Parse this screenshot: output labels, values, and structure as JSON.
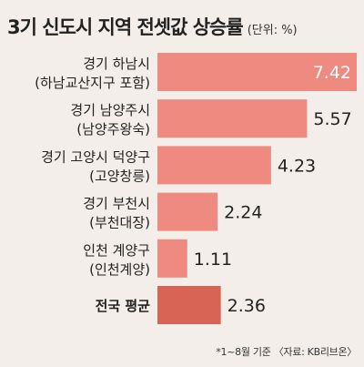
{
  "chart_data": {
    "type": "bar",
    "orientation": "horizontal",
    "title": "3기 신도시 지역 전셋값 상승률",
    "unit": "(단위: %)",
    "categories": [
      [
        "경기 하남시",
        "(하남교산지구 포함)"
      ],
      [
        "경기 남양주시",
        "(남양주왕숙)"
      ],
      [
        "경기 고양시 덕양구",
        "(고양창릉)"
      ],
      [
        "경기 부천시",
        "(부천대장)"
      ],
      [
        "인천 계양구",
        "(인천계양)"
      ],
      [
        "전국 평균"
      ]
    ],
    "values": [
      7.42,
      5.57,
      4.23,
      2.24,
      1.11,
      2.36
    ],
    "value_labels": [
      "7.42",
      "5.57",
      "4.23",
      "2.24",
      "1.11",
      "2.36"
    ],
    "highlight_index": 5,
    "colors": {
      "bar": "#ee8a80",
      "bar_highlight": "#d86456",
      "background": "#f3eeea"
    },
    "grid": false,
    "legend": "none",
    "xlim": [
      0,
      7.42
    ],
    "note": "*1~8월 기준 〈자료: KB리브온〉"
  }
}
